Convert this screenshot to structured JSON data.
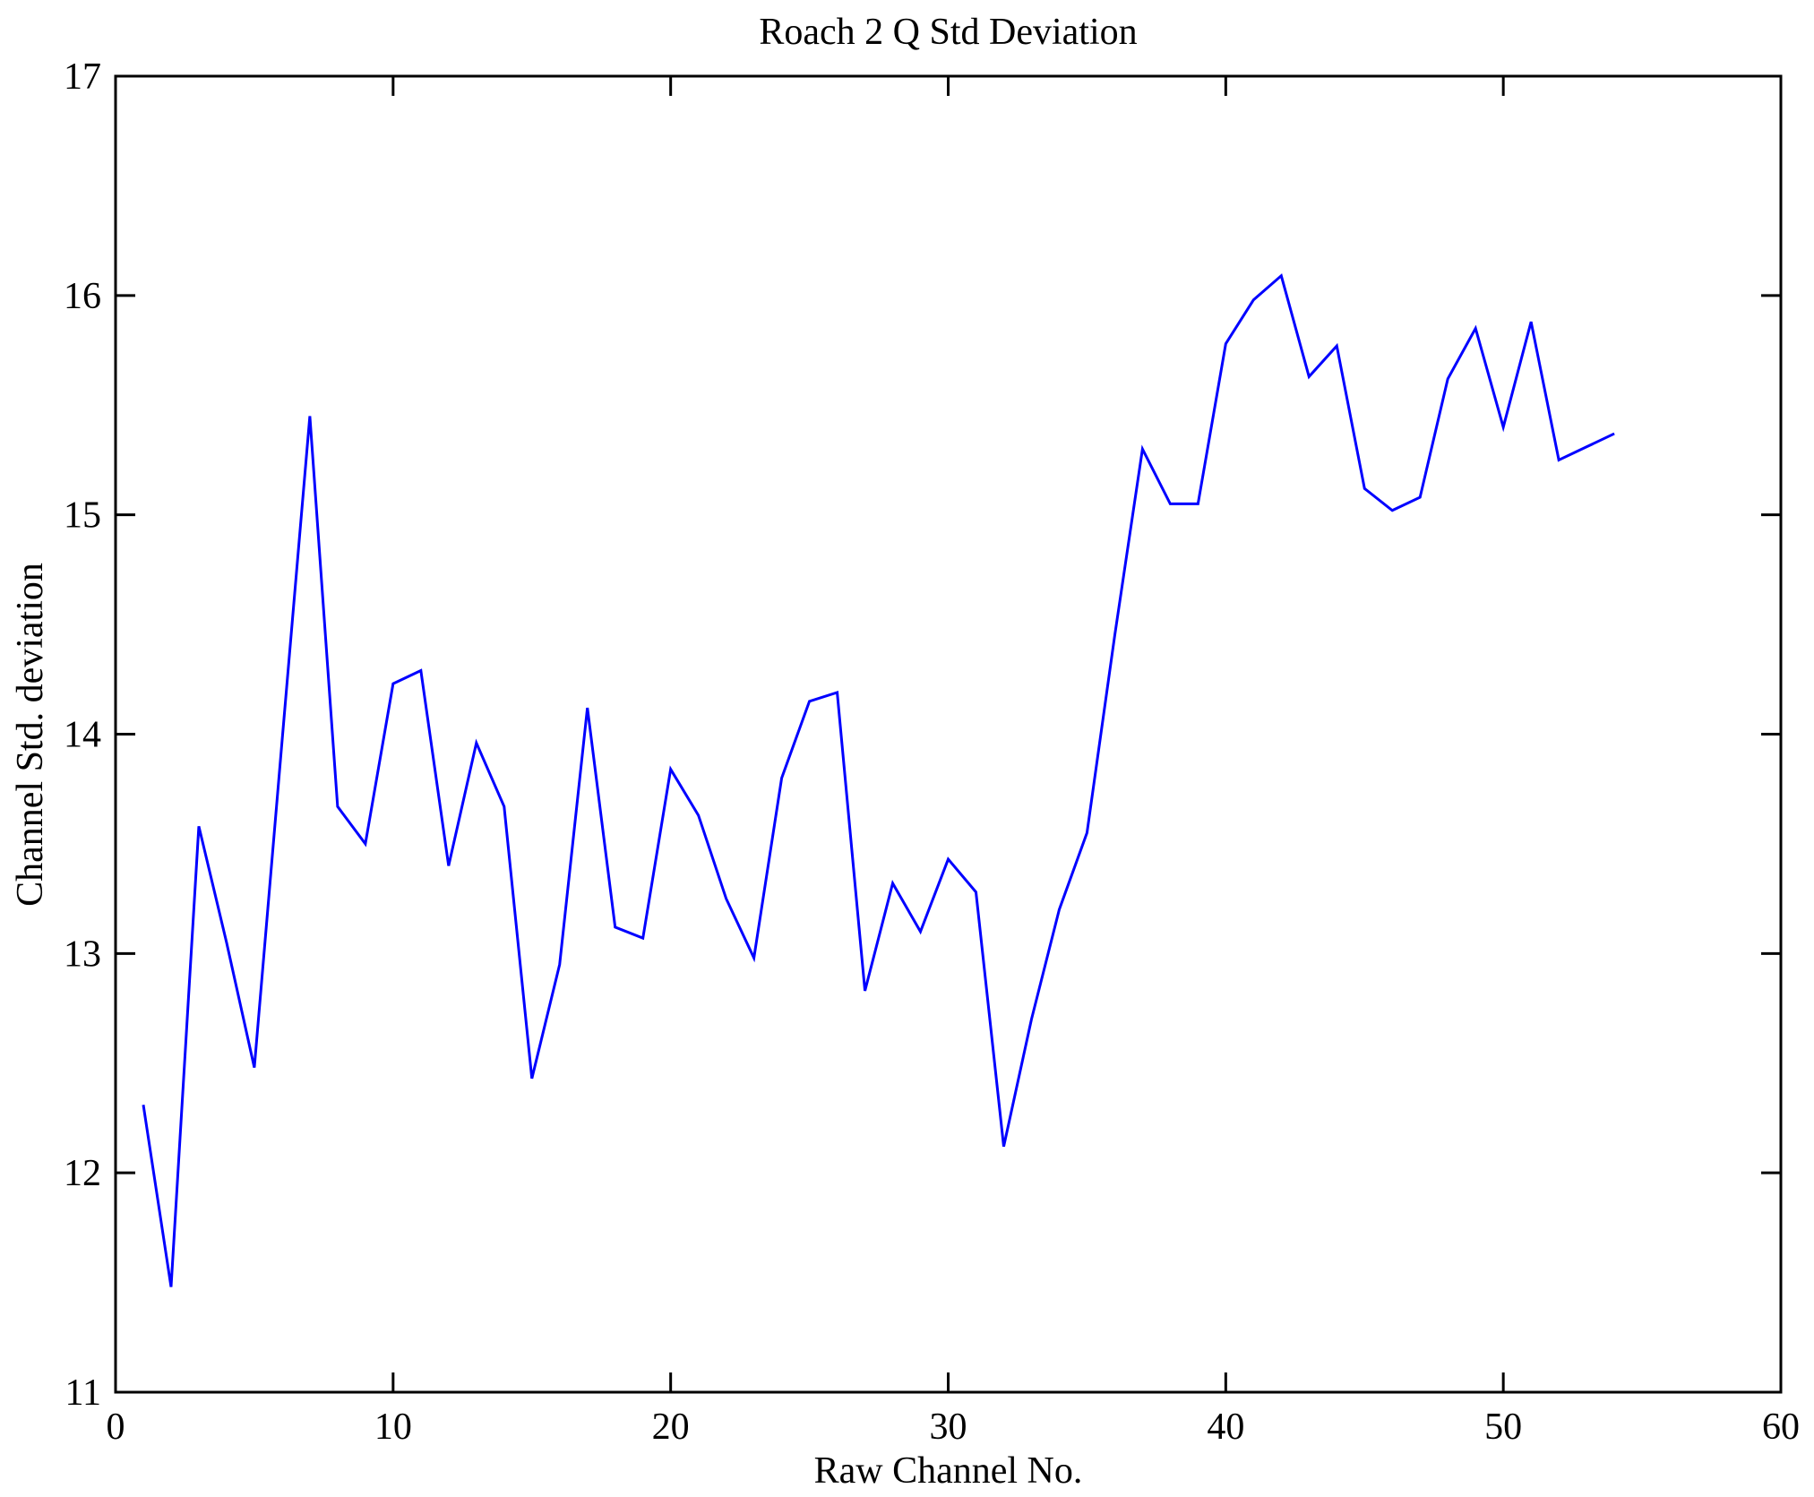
{
  "figure": {
    "background_color": "#ffffff",
    "axis_color": "#000000"
  },
  "chart_data": {
    "type": "line",
    "title": "Roach 2 Q Std Deviation",
    "xlabel": "Raw Channel No.",
    "ylabel": "Channel Std. deviation",
    "xlim": [
      0,
      60
    ],
    "ylim": [
      11,
      17
    ],
    "x_ticks": [
      0,
      10,
      20,
      30,
      40,
      50,
      60
    ],
    "y_ticks": [
      11,
      12,
      13,
      14,
      15,
      16,
      17
    ],
    "grid": false,
    "legend": null,
    "line_color": "#0000ff",
    "x": [
      1,
      2,
      3,
      4,
      5,
      6,
      7,
      8,
      9,
      10,
      11,
      12,
      13,
      14,
      15,
      16,
      17,
      18,
      19,
      20,
      21,
      22,
      23,
      24,
      25,
      26,
      27,
      28,
      29,
      30,
      31,
      32,
      33,
      34,
      35,
      36,
      37,
      38,
      39,
      40,
      41,
      42,
      43,
      44,
      45,
      46,
      47,
      48,
      49,
      50,
      51,
      52,
      53,
      54
    ],
    "values": [
      12.31,
      11.48,
      13.58,
      13.05,
      12.48,
      13.97,
      15.45,
      13.67,
      13.5,
      14.23,
      14.29,
      13.4,
      13.96,
      13.67,
      12.43,
      12.95,
      14.12,
      13.12,
      13.07,
      13.84,
      13.63,
      13.25,
      12.98,
      13.8,
      14.15,
      14.19,
      12.83,
      13.32,
      13.1,
      13.43,
      13.28,
      12.12,
      12.7,
      13.2,
      13.55,
      14.45,
      15.3,
      15.05,
      15.05,
      15.78,
      15.98,
      16.09,
      15.63,
      15.77,
      15.12,
      15.02,
      15.08,
      15.62,
      15.85,
      15.4,
      15.88,
      15.25,
      15.31,
      15.37
    ]
  }
}
